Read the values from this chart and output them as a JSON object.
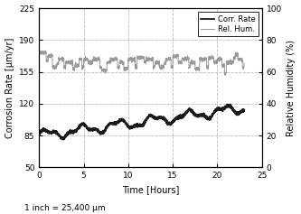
{
  "xlabel": "Time [Hours]",
  "ylabel_left": "Corrosion Rate [μm/yr]",
  "ylabel_right": "Relative Humidity (%)",
  "footnote": "1 inch = 25,400 μm",
  "xlim": [
    0,
    25
  ],
  "ylim_left": [
    50,
    225
  ],
  "ylim_right": [
    0,
    100
  ],
  "xticks": [
    0,
    5,
    10,
    15,
    20,
    25
  ],
  "yticks_left": [
    50,
    85,
    120,
    155,
    190,
    225
  ],
  "yticks_right": [
    0,
    20,
    40,
    60,
    80,
    100
  ],
  "legend_labels": [
    "Corr. Rate",
    "Rel. Hum."
  ],
  "corr_rate_color": "#1a1a1a",
  "rel_hum_color": "#999999",
  "grid_color": "#bbbbbb",
  "background_color": "#ffffff",
  "corr_linewidth": 1.3,
  "rh_linewidth": 0.7
}
